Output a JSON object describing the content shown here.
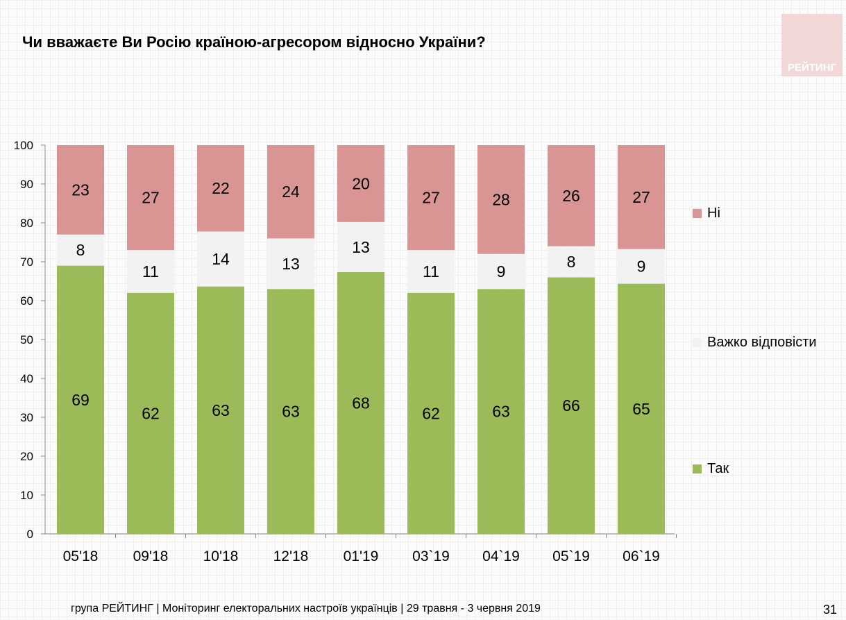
{
  "title": "Чи вважаєте Ви Росію країною-агресором відносно України?",
  "logo_text": "РЕЙТИНГ",
  "footer": "група РЕЙТИНГ | Моніторинг електоральних настроїв українців  | 29 травня - 3 червня 2019",
  "page_number": "31",
  "chart_data": {
    "type": "bar",
    "stacked": true,
    "categories": [
      "05'18",
      "09'18",
      "10'18",
      "12'18",
      "01'19",
      "03`19",
      "04`19",
      "05`19",
      "06`19"
    ],
    "series": [
      {
        "name": "Так",
        "color": "#9bbb59",
        "values": [
          69,
          62,
          63,
          63,
          68,
          62,
          63,
          66,
          65
        ]
      },
      {
        "name": "Важко відповісти",
        "color": "#f2f2f2",
        "values": [
          8,
          11,
          14,
          13,
          13,
          11,
          9,
          8,
          9
        ]
      },
      {
        "name": "Ні",
        "color": "#d99594",
        "values": [
          23,
          27,
          22,
          24,
          20,
          27,
          28,
          26,
          27
        ]
      }
    ],
    "ylim": [
      0,
      100
    ],
    "yticks": [
      0,
      10,
      20,
      30,
      40,
      50,
      60,
      70,
      80,
      90,
      100
    ],
    "legend_position": "right"
  }
}
